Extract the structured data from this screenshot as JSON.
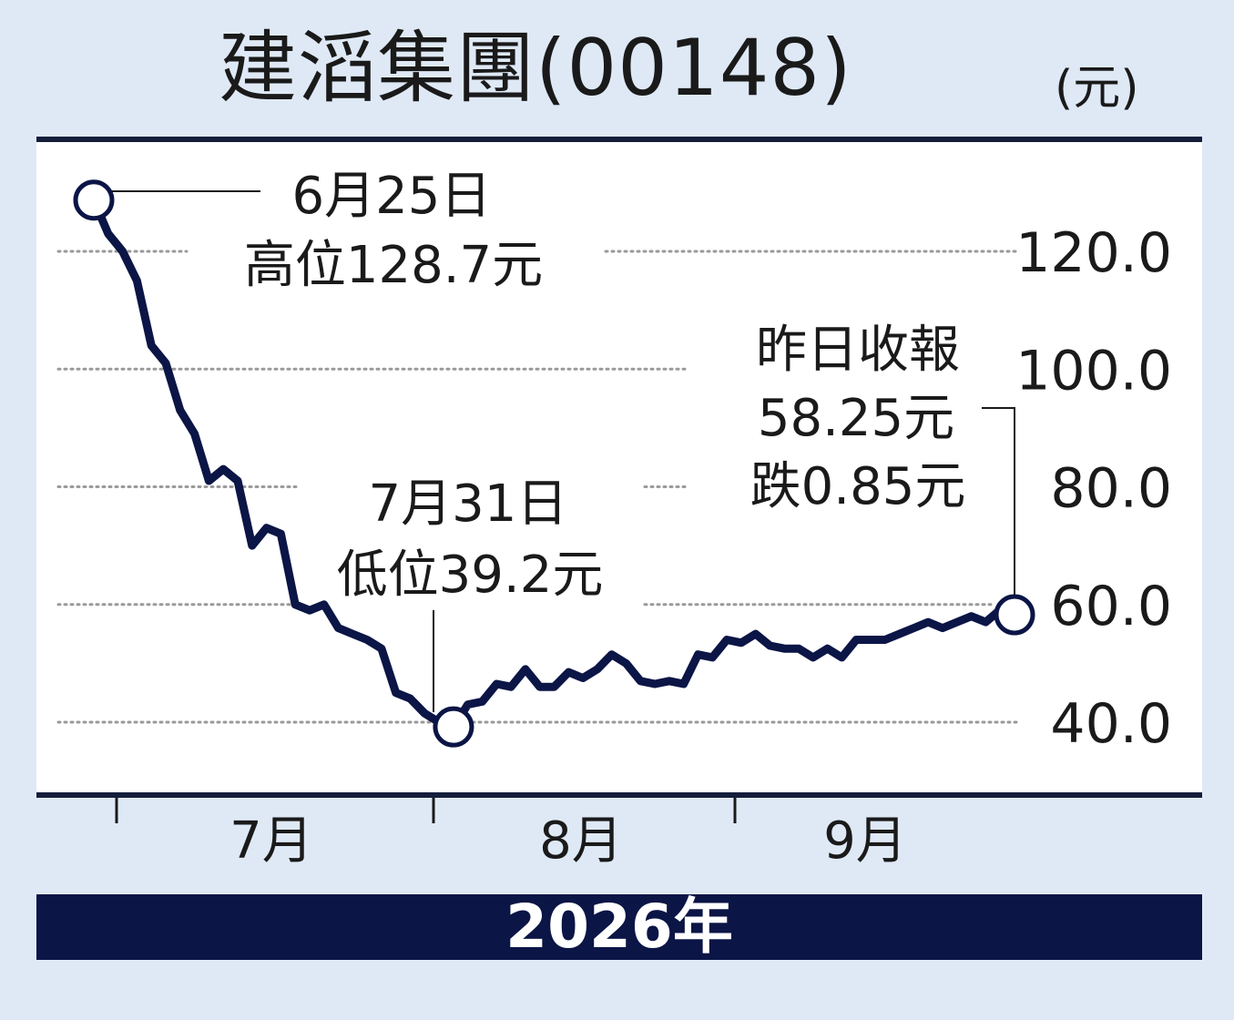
{
  "title": "建滔集團(00148)",
  "unit": "(元)",
  "year_label": "2026年",
  "colors": {
    "background": "#dfe9f6",
    "line": "#0b1546",
    "plot_bg": "#ffffff"
  },
  "annotations": {
    "high": {
      "date": "6月25日",
      "text": "高位128.7元"
    },
    "low": {
      "date": "7月31日",
      "text": "低位39.2元"
    },
    "close": {
      "line1": "昨日收報",
      "line2": "58.25元",
      "line3": "跌0.85元"
    }
  },
  "chart_data": {
    "type": "line",
    "title": "建滔集團(00148)",
    "ylabel": "(元)",
    "xlabel": "2026年",
    "ylim": [
      40,
      120
    ],
    "y_ticks": [
      "120.0",
      "100.0",
      "80.0",
      "60.0",
      "40.0"
    ],
    "y_tick_values": [
      120,
      100,
      80,
      60,
      40
    ],
    "x_ticks": [
      "7月",
      "8月",
      "9月"
    ],
    "grid": true,
    "series": [
      {
        "values": [
          128.7,
          123,
          120,
          115,
          104,
          101,
          93,
          89,
          81,
          83,
          81,
          70,
          73,
          72,
          60,
          59,
          60,
          56,
          55,
          54,
          52.5,
          45,
          44,
          41.5,
          40,
          39.2,
          43,
          43.5,
          46.5,
          46,
          49,
          46,
          46,
          48.5,
          47.5,
          49,
          51.5,
          50,
          47,
          46.5,
          47,
          46.5,
          51.5,
          51,
          54,
          53.5,
          55,
          53,
          52.5,
          52.5,
          51,
          52.5,
          51,
          54,
          54,
          54,
          55,
          56,
          57,
          56,
          57,
          58,
          57,
          59.1,
          58.25
        ]
      }
    ],
    "markers": [
      {
        "label": "6月25日 高位128.7元",
        "value": 128.7
      },
      {
        "label": "7月31日 低位39.2元",
        "value": 39.2
      },
      {
        "label": "昨日收報 58.25元",
        "value": 58.25
      }
    ]
  }
}
